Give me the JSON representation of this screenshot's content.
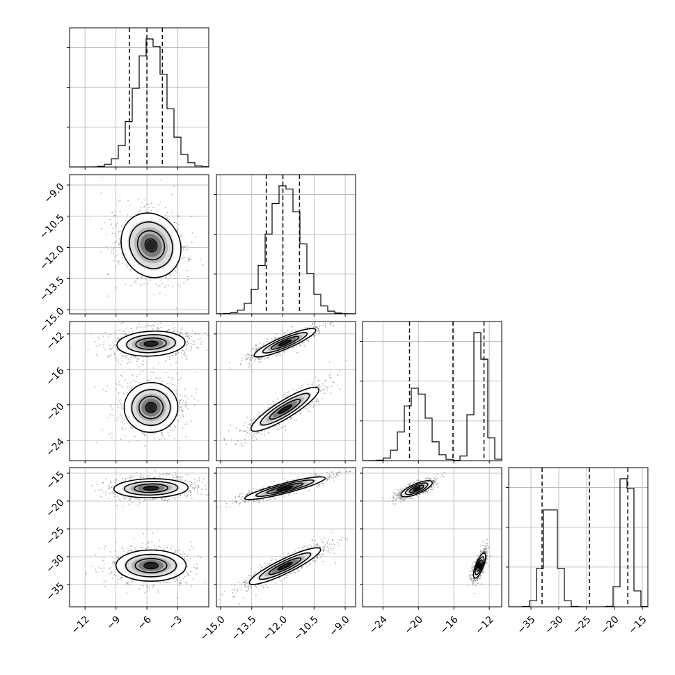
{
  "chart_data": {
    "type": "corner",
    "parameters": [
      {
        "range": [
          -13.5,
          0.0
        ],
        "ticks": [
          -12,
          -9,
          -6,
          -3
        ],
        "tick_labels": [
          "−12",
          "−9",
          "−6",
          "−3"
        ],
        "quantiles": [
          -7.7,
          -6.0,
          -4.5
        ],
        "modes": [
          {
            "center": -5.6,
            "sd": 1.5
          }
        ]
      },
      {
        "range": [
          -15.2,
          -8.5
        ],
        "ticks": [
          -15.0,
          -13.5,
          -12.0,
          -10.5,
          -9.0
        ],
        "tick_labels": [
          "−15.0",
          "−13.5",
          "−12.0",
          "−10.5",
          "−9.0"
        ],
        "quantiles": [
          -12.8,
          -12.0,
          -11.2
        ],
        "modes": [
          {
            "center": -11.9,
            "sd": 0.8
          }
        ]
      },
      {
        "range": [
          -26.3,
          -10.6
        ],
        "ticks": [
          -24,
          -20,
          -16,
          -12
        ],
        "tick_labels": [
          "−24",
          "−20",
          "−16",
          "−12"
        ],
        "quantiles": [
          -21.0,
          -16.1,
          -12.6
        ],
        "modes": [
          {
            "center": -20.2,
            "sd": 1.3,
            "weight": 0.5
          },
          {
            "center": -13.1,
            "sd": 0.7,
            "weight": 0.5
          }
        ]
      },
      {
        "range": [
          -39.0,
          -14.0
        ],
        "ticks": [
          -35,
          -30,
          -25,
          -20,
          -15
        ],
        "tick_labels": [
          "−35",
          "−30",
          "−25",
          "−20",
          "−15"
        ],
        "quantiles": [
          -33.0,
          -24.5,
          -17.6
        ],
        "modes": [
          {
            "center": -31.5,
            "sd": 1.3,
            "weight": 0.5
          },
          {
            "center": -17.8,
            "sd": 0.9,
            "weight": 0.5
          }
        ]
      }
    ],
    "pair_plots": [
      {
        "row": 1,
        "col": 0,
        "y_tick_labels": [
          "−9.0",
          "−10.5",
          "−12.0",
          "−13.5",
          "−15.0"
        ],
        "blobs": [
          {
            "cx": -5.6,
            "cy": -11.9,
            "rx": 2.8,
            "ry": 1.6,
            "angle": 0.5
          }
        ]
      },
      {
        "row": 2,
        "col": 0,
        "y_tick_labels": [
          "−12",
          "−16",
          "−20",
          "−24"
        ],
        "blobs": [
          {
            "cx": -5.6,
            "cy": -13.1,
            "rx": 3.3,
            "ry": 1.4,
            "angle": 0.05
          },
          {
            "cx": -5.6,
            "cy": -20.3,
            "rx": 2.6,
            "ry": 2.8,
            "angle": 0.05
          }
        ]
      },
      {
        "row": 2,
        "col": 1,
        "blobs": [
          {
            "cx": -11.9,
            "cy": -13.0,
            "rx": 1.6,
            "ry": 0.7,
            "angle": 0.4
          },
          {
            "cx": -11.9,
            "cy": -20.5,
            "rx": 1.9,
            "ry": 1.0,
            "angle": 0.55
          }
        ]
      },
      {
        "row": 3,
        "col": 0,
        "y_tick_labels": [
          "−15",
          "−20",
          "−25",
          "−30",
          "−35"
        ],
        "blobs": [
          {
            "cx": -5.6,
            "cy": -17.7,
            "rx": 3.6,
            "ry": 1.7,
            "angle": 0.02
          },
          {
            "cx": -5.6,
            "cy": -31.6,
            "rx": 3.4,
            "ry": 2.8,
            "angle": 0.0
          }
        ]
      },
      {
        "row": 3,
        "col": 1,
        "blobs": [
          {
            "cx": -11.9,
            "cy": -17.7,
            "rx": 2.0,
            "ry": 0.9,
            "angle": 0.25
          },
          {
            "cx": -11.9,
            "cy": -31.7,
            "rx": 1.9,
            "ry": 1.3,
            "angle": 0.45
          }
        ]
      },
      {
        "row": 3,
        "col": 2,
        "blobs": [
          {
            "cx": -20.2,
            "cy": -17.8,
            "rx": 1.9,
            "ry": 0.9,
            "angle": 0.4
          },
          {
            "cx": -13.1,
            "cy": -31.6,
            "rx": 1.5,
            "ry": 0.7,
            "angle": 1.2
          }
        ]
      }
    ],
    "grid": true,
    "xlabel": "",
    "ylabel": "",
    "title": ""
  }
}
